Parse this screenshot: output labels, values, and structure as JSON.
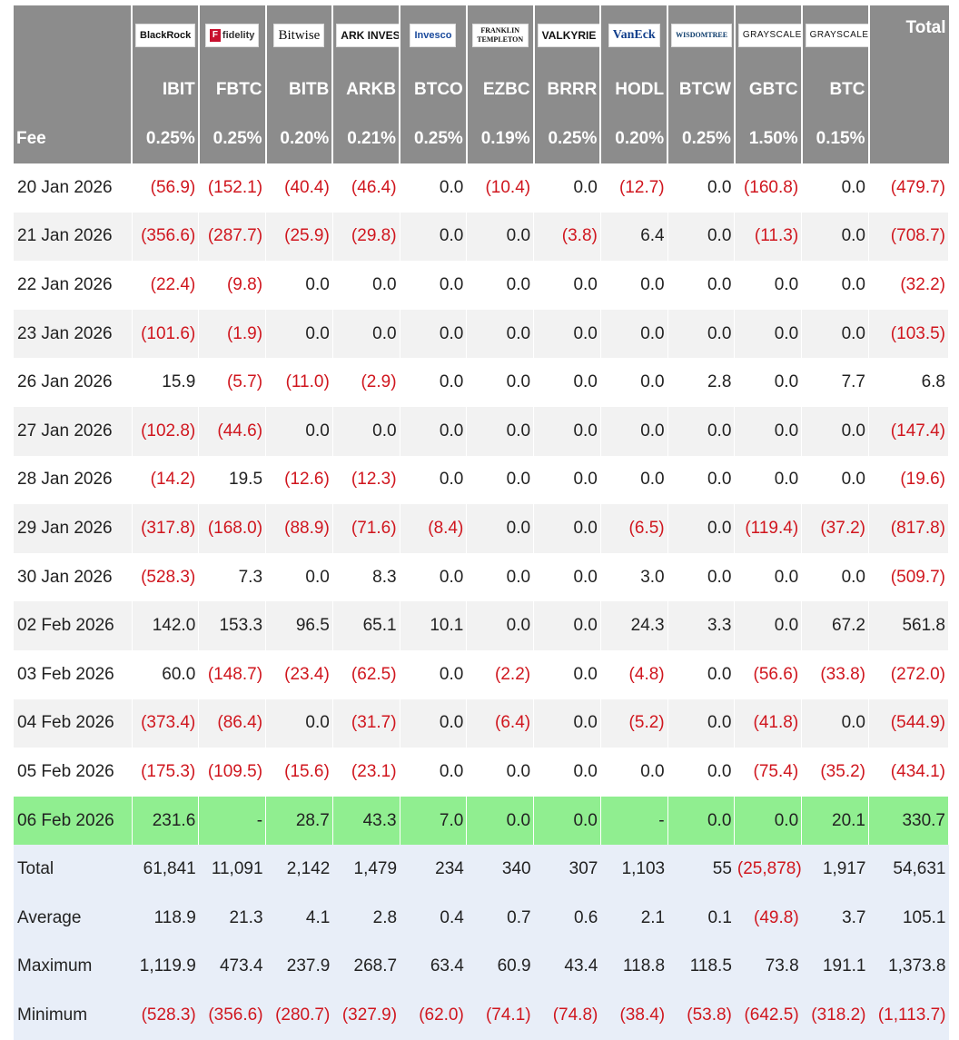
{
  "header": {
    "total_label": "Total",
    "fee_label": "Fee",
    "funds": [
      {
        "ticker": "IBIT",
        "fee": "0.25%",
        "logo": "BlackRock",
        "logo_icon": "blackrock-logo-icon"
      },
      {
        "ticker": "FBTC",
        "fee": "0.25%",
        "logo": "fidelity",
        "logo_icon": "fidelity-logo-icon"
      },
      {
        "ticker": "BITB",
        "fee": "0.20%",
        "logo": "Bitwise",
        "logo_icon": "bitwise-logo-icon"
      },
      {
        "ticker": "ARKB",
        "fee": "0.21%",
        "logo": "ARK INVEST",
        "logo_icon": "ark-invest-logo-icon"
      },
      {
        "ticker": "BTCO",
        "fee": "0.25%",
        "logo": "Invesco",
        "logo_icon": "invesco-logo-icon"
      },
      {
        "ticker": "EZBC",
        "fee": "0.19%",
        "logo": "FRANKLIN TEMPLETON",
        "logo_icon": "franklin-templeton-logo-icon"
      },
      {
        "ticker": "BRRR",
        "fee": "0.25%",
        "logo": "VALKYRIE",
        "logo_icon": "valkyrie-logo-icon"
      },
      {
        "ticker": "HODL",
        "fee": "0.20%",
        "logo": "VanEck",
        "logo_icon": "vaneck-logo-icon"
      },
      {
        "ticker": "BTCW",
        "fee": "0.25%",
        "logo": "WISDOMTREE",
        "logo_icon": "wisdomtree-logo-icon"
      },
      {
        "ticker": "GBTC",
        "fee": "1.50%",
        "logo": "GRAYSCALE",
        "logo_icon": "grayscale-logo-icon"
      },
      {
        "ticker": "BTC",
        "fee": "0.15%",
        "logo": "GRAYSCALE",
        "logo_icon": "grayscale-logo-icon"
      }
    ]
  },
  "rows": [
    {
      "date": "20 Jan 2026",
      "values": [
        "(56.9)",
        "(152.1)",
        "(40.4)",
        "(46.4)",
        "0.0",
        "(10.4)",
        "0.0",
        "(12.7)",
        "0.0",
        "(160.8)",
        "0.0"
      ],
      "total": "(479.7)"
    },
    {
      "date": "21 Jan 2026",
      "values": [
        "(356.6)",
        "(287.7)",
        "(25.9)",
        "(29.8)",
        "0.0",
        "0.0",
        "(3.8)",
        "6.4",
        "0.0",
        "(11.3)",
        "0.0"
      ],
      "total": "(708.7)"
    },
    {
      "date": "22 Jan 2026",
      "values": [
        "(22.4)",
        "(9.8)",
        "0.0",
        "0.0",
        "0.0",
        "0.0",
        "0.0",
        "0.0",
        "0.0",
        "0.0",
        "0.0"
      ],
      "total": "(32.2)"
    },
    {
      "date": "23 Jan 2026",
      "values": [
        "(101.6)",
        "(1.9)",
        "0.0",
        "0.0",
        "0.0",
        "0.0",
        "0.0",
        "0.0",
        "0.0",
        "0.0",
        "0.0"
      ],
      "total": "(103.5)"
    },
    {
      "date": "26 Jan 2026",
      "values": [
        "15.9",
        "(5.7)",
        "(11.0)",
        "(2.9)",
        "0.0",
        "0.0",
        "0.0",
        "0.0",
        "2.8",
        "0.0",
        "7.7"
      ],
      "total": "6.8"
    },
    {
      "date": "27 Jan 2026",
      "values": [
        "(102.8)",
        "(44.6)",
        "0.0",
        "0.0",
        "0.0",
        "0.0",
        "0.0",
        "0.0",
        "0.0",
        "0.0",
        "0.0"
      ],
      "total": "(147.4)"
    },
    {
      "date": "28 Jan 2026",
      "values": [
        "(14.2)",
        "19.5",
        "(12.6)",
        "(12.3)",
        "0.0",
        "0.0",
        "0.0",
        "0.0",
        "0.0",
        "0.0",
        "0.0"
      ],
      "total": "(19.6)"
    },
    {
      "date": "29 Jan 2026",
      "values": [
        "(317.8)",
        "(168.0)",
        "(88.9)",
        "(71.6)",
        "(8.4)",
        "0.0",
        "0.0",
        "(6.5)",
        "0.0",
        "(119.4)",
        "(37.2)"
      ],
      "total": "(817.8)"
    },
    {
      "date": "30 Jan 2026",
      "values": [
        "(528.3)",
        "7.3",
        "0.0",
        "8.3",
        "0.0",
        "0.0",
        "0.0",
        "3.0",
        "0.0",
        "0.0",
        "0.0"
      ],
      "total": "(509.7)"
    },
    {
      "date": "02 Feb 2026",
      "values": [
        "142.0",
        "153.3",
        "96.5",
        "65.1",
        "10.1",
        "0.0",
        "0.0",
        "24.3",
        "3.3",
        "0.0",
        "67.2"
      ],
      "total": "561.8"
    },
    {
      "date": "03 Feb 2026",
      "values": [
        "60.0",
        "(148.7)",
        "(23.4)",
        "(62.5)",
        "0.0",
        "(2.2)",
        "0.0",
        "(4.8)",
        "0.0",
        "(56.6)",
        "(33.8)"
      ],
      "total": "(272.0)"
    },
    {
      "date": "04 Feb 2026",
      "values": [
        "(373.4)",
        "(86.4)",
        "0.0",
        "(31.7)",
        "0.0",
        "(6.4)",
        "0.0",
        "(5.2)",
        "0.0",
        "(41.8)",
        "0.0"
      ],
      "total": "(544.9)"
    },
    {
      "date": "05 Feb 2026",
      "values": [
        "(175.3)",
        "(109.5)",
        "(15.6)",
        "(23.1)",
        "0.0",
        "0.0",
        "0.0",
        "0.0",
        "0.0",
        "(75.4)",
        "(35.2)"
      ],
      "total": "(434.1)"
    },
    {
      "date": "06 Feb 2026",
      "values": [
        "231.6",
        "-",
        "28.7",
        "43.3",
        "7.0",
        "0.0",
        "0.0",
        "-",
        "0.0",
        "0.0",
        "20.1"
      ],
      "total": "330.7",
      "highlight": true
    }
  ],
  "stats": [
    {
      "label": "Total",
      "values": [
        "61,841",
        "11,091",
        "2,142",
        "1,479",
        "234",
        "340",
        "307",
        "1,103",
        "55",
        "(25,878)",
        "1,917"
      ],
      "total": "54,631"
    },
    {
      "label": "Average",
      "values": [
        "118.9",
        "21.3",
        "4.1",
        "2.8",
        "0.4",
        "0.7",
        "0.6",
        "2.1",
        "0.1",
        "(49.8)",
        "3.7"
      ],
      "total": "105.1"
    },
    {
      "label": "Maximum",
      "values": [
        "1,119.9",
        "473.4",
        "237.9",
        "268.7",
        "63.4",
        "60.9",
        "43.4",
        "118.8",
        "118.5",
        "73.8",
        "191.1"
      ],
      "total": "1,373.8"
    },
    {
      "label": "Minimum",
      "values": [
        "(528.3)",
        "(356.6)",
        "(280.7)",
        "(327.9)",
        "(62.0)",
        "(74.1)",
        "(74.8)",
        "(38.4)",
        "(53.8)",
        "(642.5)",
        "(318.2)"
      ],
      "total": "(1,113.7)"
    }
  ],
  "colors": {
    "header_bg": "#8c8c8c",
    "negative_text": "#d0161e",
    "highlight_row": "#90ee90",
    "stats_bg": "#e8eef8",
    "alt_row": "#f2f2f2"
  }
}
